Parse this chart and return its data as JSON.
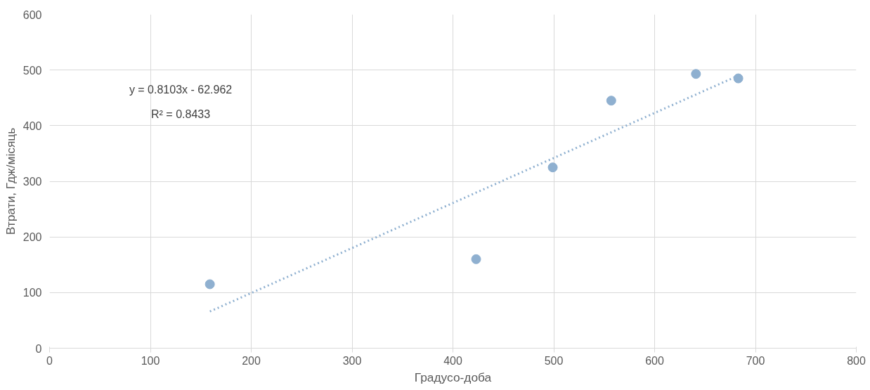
{
  "chart_data": {
    "type": "scatter",
    "xlabel": "Градусо-доба",
    "ylabel": "Втрати, Гдж/місяць",
    "annotations": [
      "y = 0.8103x - 62.962",
      "R² = 0.8433"
    ],
    "series": [
      {
        "color": "#8fb0d0",
        "x": [
          159,
          423,
          499,
          557,
          641,
          683
        ],
        "values": [
          115,
          160,
          325,
          445,
          493,
          485
        ],
        "marker": "circle"
      },
      {
        "type": "line",
        "color": "#8fb0d0",
        "x": [
          159,
          683
        ],
        "values": [
          66,
          490
        ],
        "line_style": "dotted"
      }
    ],
    "xlim": [
      0,
      800
    ],
    "xticks": [
      0,
      100,
      200,
      300,
      400,
      500,
      600,
      700,
      800
    ],
    "ylim": [
      0,
      600
    ],
    "yticks": [
      0,
      100,
      200,
      300,
      400,
      500,
      600
    ],
    "grid": true
  }
}
